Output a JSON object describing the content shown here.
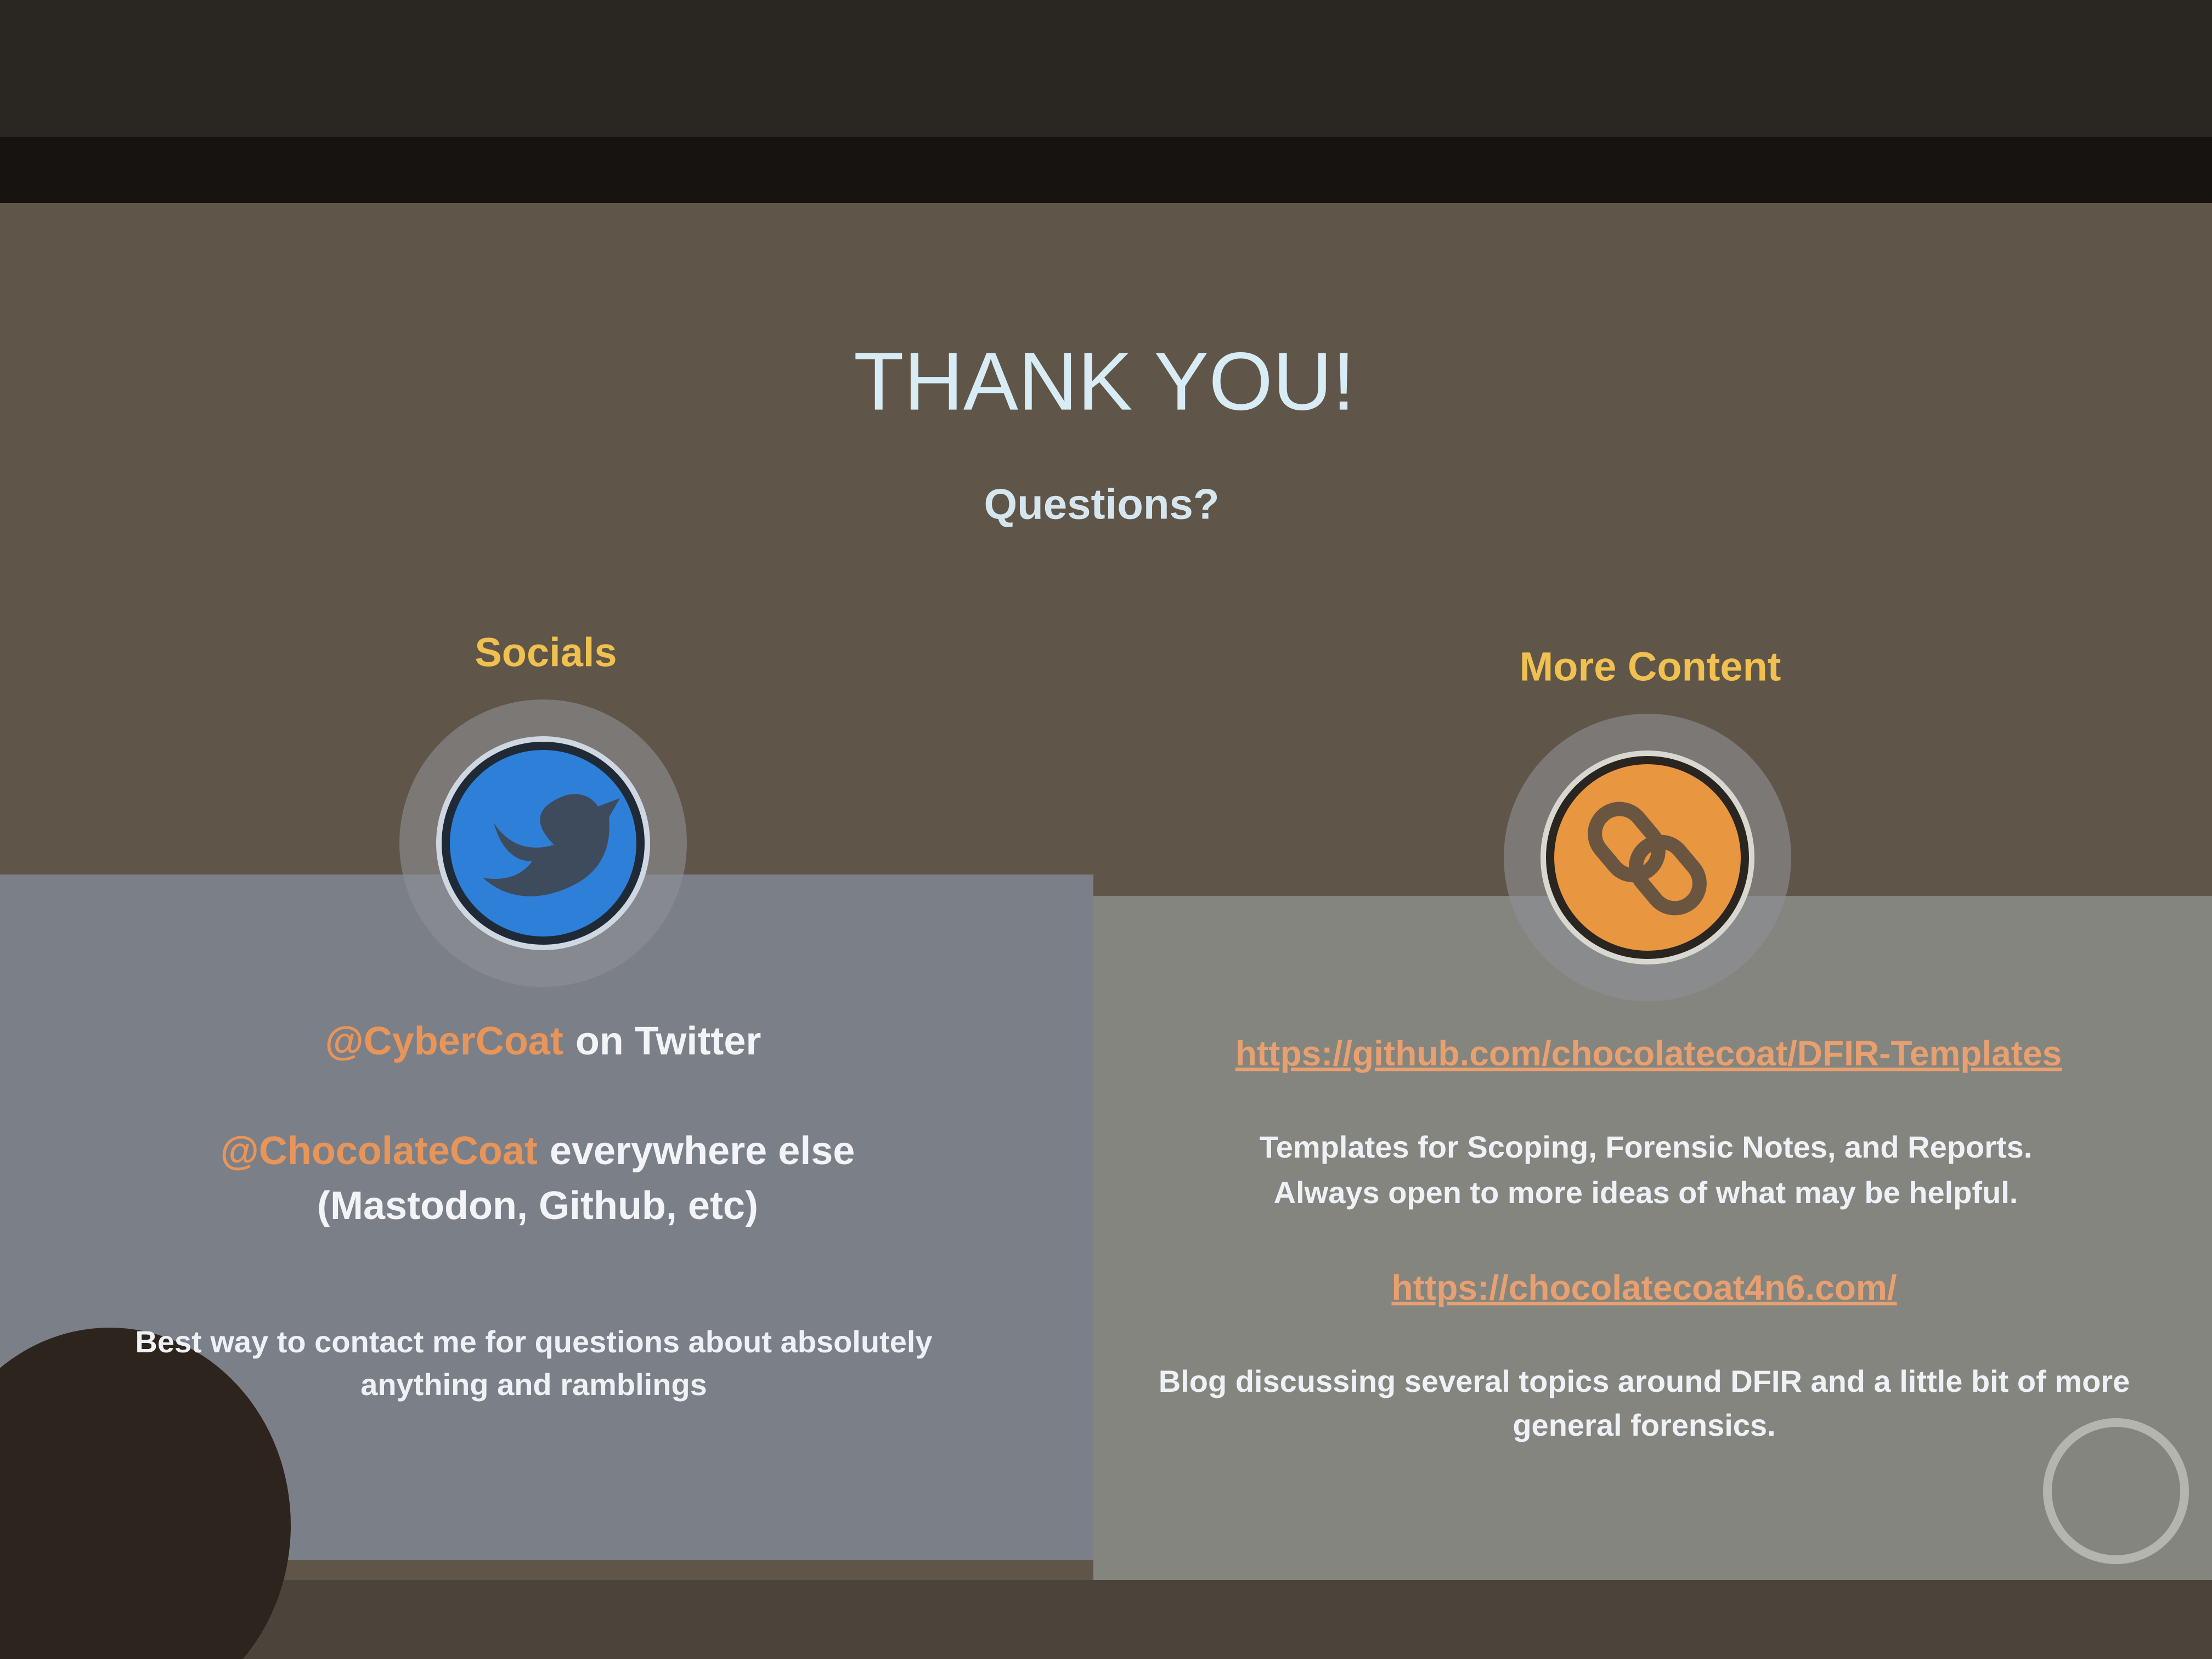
{
  "slide": {
    "title": "THANK YOU!",
    "subtitle": "Questions?",
    "left": {
      "heading": "Socials",
      "twitter": {
        "handle": "@CyberCoat",
        "text": "on Twitter"
      },
      "other": {
        "handle": "@ChocolateCoat",
        "text": "everywhere else",
        "platforms": "(Mastodon, Github, etc)"
      },
      "note": [
        "Best way to contact me for questions about absolutely",
        "anything and ramblings"
      ]
    },
    "right": {
      "heading": "More Content",
      "link1": "https://github.com/chocolatecoat/DFIR-Templates",
      "description1": [
        "Templates for Scoping, Forensic Notes, and Reports.",
        "Always open to more ideas of what may be helpful."
      ],
      "link2": "https://chocolatecoat4n6.com/",
      "description2": [
        "Blog discussing several topics around DFIR and a little bit of more",
        "general forensics."
      ]
    }
  }
}
